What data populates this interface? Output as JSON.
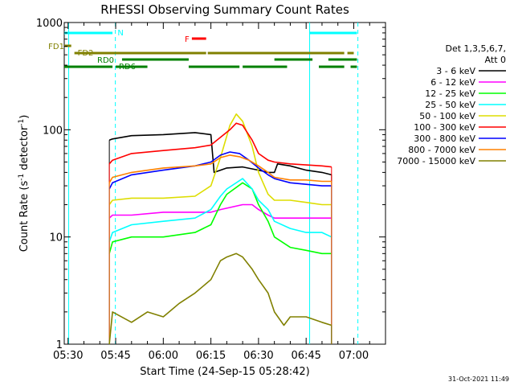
{
  "chart_data": {
    "type": "line",
    "title": "RHESSI Observing Summary Count Rates",
    "xlabel": "Start Time (24-Sep-15 05:28:42)",
    "ylabel_main": "Count Rate (s",
    "ylabel_sup1": "-1",
    "ylabel_mid": " detector",
    "ylabel_sup2": "-1",
    "ylabel_end": ")",
    "y_scale": "log",
    "ylim": [
      1,
      1000
    ],
    "xlim_minutes": [
      -1.2,
      100
    ],
    "x_ticks": [
      {
        "m": 0,
        "label": "05:30"
      },
      {
        "m": 15,
        "label": "05:45"
      },
      {
        "m": 30,
        "label": "06:00"
      },
      {
        "m": 45,
        "label": "06:15"
      },
      {
        "m": 60,
        "label": "06:30"
      },
      {
        "m": 75,
        "label": "06:45"
      },
      {
        "m": 90,
        "label": "07:00"
      }
    ],
    "y_ticks": [
      {
        "v": 1,
        "label": "1"
      },
      {
        "v": 10,
        "label": "10"
      },
      {
        "v": 100,
        "label": "100"
      },
      {
        "v": 1000,
        "label": "1000"
      }
    ],
    "legend": {
      "header1": "Det 1,3,5,6,7,",
      "header2": "Att 0",
      "placement": "right"
    },
    "series": [
      {
        "name": "3 - 6 keV",
        "color": "#000000",
        "x": [
          13,
          14,
          20,
          30,
          40,
          45,
          46,
          48,
          50,
          55,
          60,
          63,
          65,
          66,
          68,
          70,
          75,
          80,
          83
        ],
        "y": [
          80,
          82,
          88,
          90,
          94,
          90,
          40,
          42,
          44,
          45,
          42,
          40,
          40,
          48,
          47,
          46,
          42,
          40,
          38
        ]
      },
      {
        "name": "6 - 12 keV",
        "color": "#ff00ff",
        "x": [
          13,
          14,
          20,
          30,
          40,
          45,
          48,
          55,
          58,
          60,
          63,
          65,
          70,
          75,
          80,
          83
        ],
        "y": [
          15,
          16,
          16,
          17,
          17,
          17,
          18,
          20,
          20,
          18,
          16,
          15,
          15,
          15,
          15,
          15
        ]
      },
      {
        "name": "12 - 25 keV",
        "color": "#00ff00",
        "x": [
          13,
          14,
          20,
          30,
          40,
          45,
          48,
          50,
          55,
          58,
          60,
          63,
          65,
          70,
          75,
          80,
          83
        ],
        "y": [
          7,
          9,
          10,
          10,
          11,
          13,
          20,
          25,
          32,
          28,
          20,
          14,
          10,
          8,
          7.5,
          7,
          7
        ]
      },
      {
        "name": "25 - 50 keV",
        "color": "#00ffff",
        "x": [
          13,
          14,
          20,
          30,
          40,
          45,
          48,
          50,
          55,
          58,
          60,
          63,
          65,
          70,
          75,
          80,
          83
        ],
        "y": [
          9,
          11,
          13,
          14,
          15,
          18,
          24,
          28,
          35,
          28,
          22,
          18,
          14,
          12,
          11,
          11,
          10
        ]
      },
      {
        "name": "50 - 100 keV",
        "color": "#dddd00",
        "x": [
          13,
          14,
          20,
          30,
          40,
          45,
          48,
          51,
          53,
          55,
          58,
          60,
          63,
          65,
          70,
          75,
          80,
          83
        ],
        "y": [
          20,
          22,
          23,
          23,
          24,
          30,
          55,
          110,
          140,
          120,
          70,
          40,
          25,
          22,
          22,
          21,
          20,
          20
        ]
      },
      {
        "name": "100 - 300 keV",
        "color": "#ff0000",
        "x": [
          13,
          14,
          20,
          30,
          40,
          45,
          48,
          51,
          53,
          55,
          58,
          60,
          63,
          65,
          70,
          75,
          80,
          83
        ],
        "y": [
          48,
          52,
          60,
          64,
          68,
          72,
          85,
          100,
          115,
          110,
          80,
          60,
          52,
          50,
          48,
          47,
          46,
          45
        ]
      },
      {
        "name": "300 - 800 keV",
        "color": "#0000ff",
        "x": [
          13,
          14,
          20,
          30,
          40,
          45,
          48,
          51,
          54,
          57,
          60,
          63,
          65,
          70,
          75,
          80,
          83
        ],
        "y": [
          28,
          32,
          38,
          42,
          46,
          50,
          58,
          62,
          60,
          52,
          44,
          38,
          35,
          32,
          31,
          30,
          30
        ]
      },
      {
        "name": "800 - 7000 keV",
        "color": "#ff8000",
        "x": [
          13,
          14,
          20,
          30,
          40,
          45,
          48,
          51,
          54,
          57,
          60,
          63,
          65,
          70,
          75,
          80,
          83
        ],
        "y": [
          32,
          36,
          40,
          44,
          46,
          48,
          55,
          58,
          56,
          52,
          46,
          40,
          36,
          34,
          34,
          33,
          33
        ]
      },
      {
        "name": "7000 - 15000 keV",
        "color": "#808000",
        "x": [
          13,
          14,
          20,
          25,
          30,
          35,
          40,
          45,
          48,
          50,
          53,
          55,
          58,
          60,
          63,
          65,
          68,
          70,
          75,
          80,
          83
        ],
        "y": [
          1,
          2,
          1.6,
          2,
          1.8,
          2.4,
          3,
          4,
          6,
          6.5,
          7,
          6.5,
          5,
          4,
          3,
          2,
          1.5,
          1.8,
          1.8,
          1.6,
          1.5
        ]
      }
    ],
    "bars": [
      {
        "label": "N",
        "color": "#00ffff",
        "segments": [
          [
            -2,
            14
          ],
          [
            76,
            91
          ]
        ]
      },
      {
        "label": "F",
        "color": "#ff0000",
        "segments": [
          [
            39,
            43.5
          ]
        ]
      },
      {
        "label": "FD1",
        "color": "#808000",
        "segments": [
          [
            -2,
            1
          ]
        ]
      },
      {
        "label": "FD2",
        "color": "#808000",
        "segments": [
          [
            2,
            43.5
          ],
          [
            44,
            87
          ],
          [
            88,
            90
          ]
        ]
      },
      {
        "label": "RD0",
        "color": "#008000",
        "segments": [
          [
            17,
            38
          ],
          [
            65,
            77
          ],
          [
            82,
            91
          ]
        ]
      },
      {
        "label": "RD6",
        "color": "#008000",
        "segments": [
          [
            -2,
            14
          ],
          [
            15,
            25
          ],
          [
            38,
            54
          ],
          [
            55,
            69
          ],
          [
            79,
            87
          ],
          [
            89,
            91
          ]
        ]
      }
    ],
    "vertical_lines": [
      {
        "m": 0.2,
        "color": "#00ffff",
        "style": "solid"
      },
      {
        "m": 14.9,
        "color": "#00ffff",
        "style": "dashed"
      },
      {
        "m": 76.1,
        "color": "#00ffff",
        "style": "solid"
      },
      {
        "m": 91.3,
        "color": "#00ffff",
        "style": "dashed"
      }
    ],
    "grid": false
  },
  "footer": {
    "timestamp": "31-Oct-2021 11:49"
  }
}
